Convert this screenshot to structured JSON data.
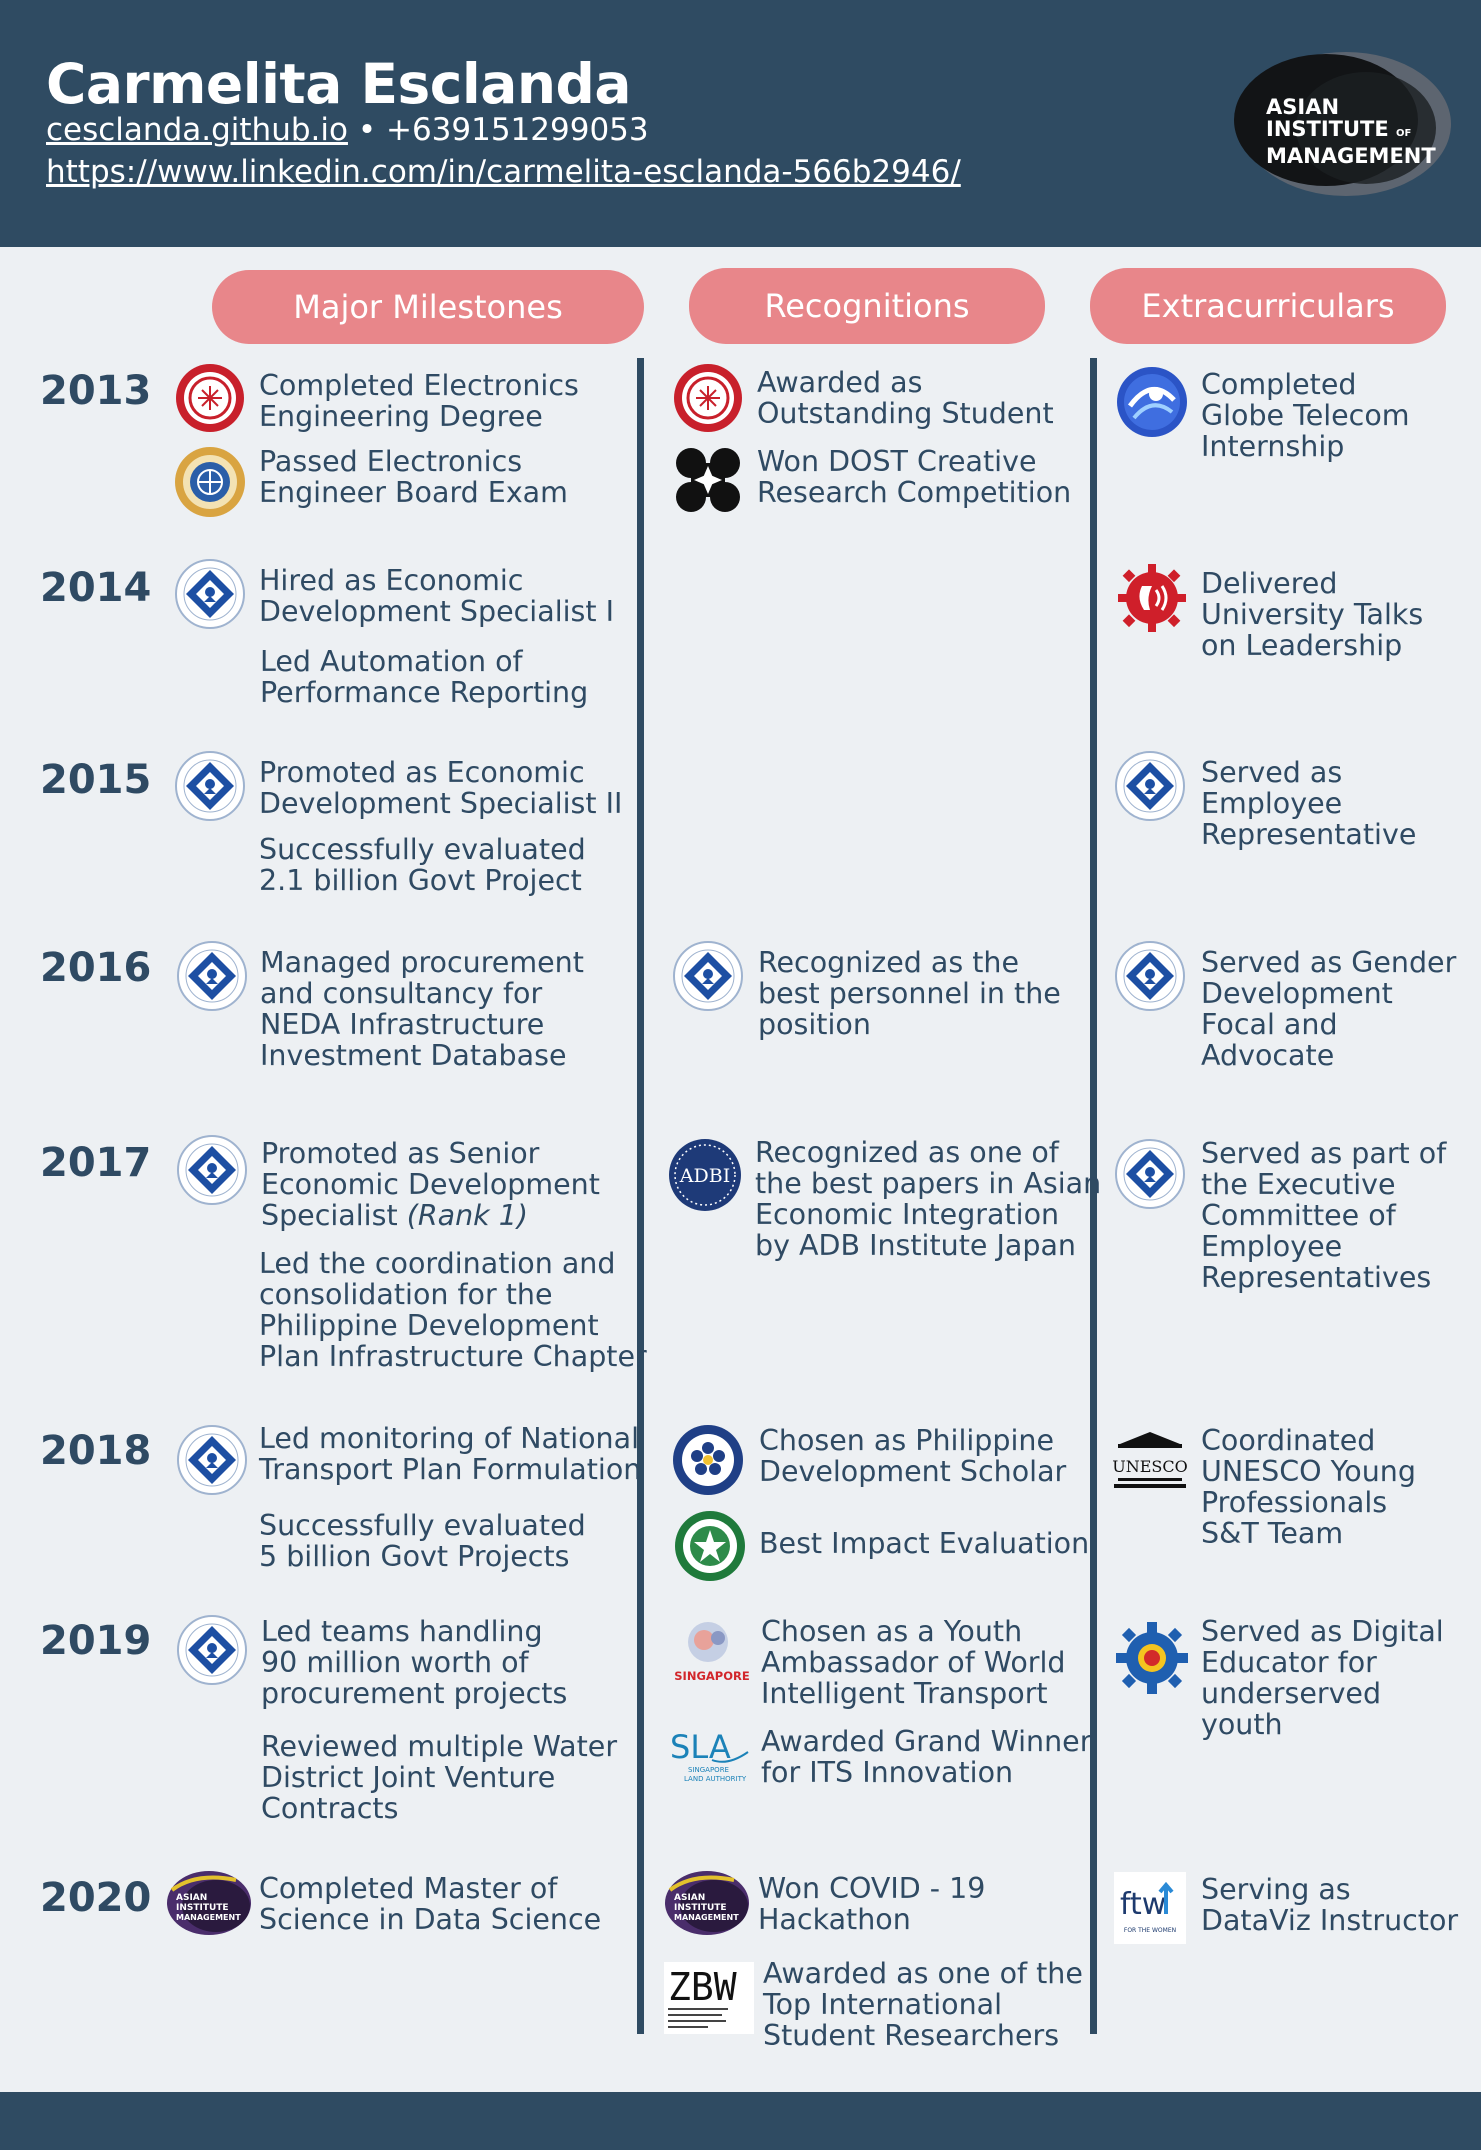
{
  "header": {
    "name": "Carmelita Esclanda",
    "website": "cesclanda.github.io",
    "separator": "•",
    "phone": "+639151299053",
    "linkedin": "https://www.linkedin.com/in/carmelita-esclanda-566b2946/",
    "logo": {
      "line1": "ASIAN",
      "line2": "INSTITUTE",
      "of": "OF",
      "line3": "MANAGEMENT"
    }
  },
  "columns": {
    "milestones": "Major Milestones",
    "recognitions": "Recognitions",
    "extracurriculars": "Extracurriculars"
  },
  "years": [
    "2013",
    "2014",
    "2015",
    "2016",
    "2017",
    "2018",
    "2019",
    "2020"
  ],
  "milestones": {
    "m2013a": [
      "Completed Electronics",
      "Engineering Degree"
    ],
    "m2013b": [
      "Passed Electronics",
      "Engineer Board Exam"
    ],
    "m2014a": [
      "Hired as Economic",
      "Development Specialist I"
    ],
    "m2014b": [
      "Led Automation of",
      "Performance Reporting"
    ],
    "m2015a": [
      "Promoted as Economic",
      "Development Specialist II"
    ],
    "m2015b": [
      "Successfully evaluated",
      "2.1 billion Govt Project"
    ],
    "m2016a": [
      "Managed procurement",
      "and consultancy for",
      "NEDA Infrastructure",
      "Investment Database"
    ],
    "m2017a": [
      "Promoted as Senior",
      "Economic Development",
      "Specialist",
      "(Rank 1)"
    ],
    "m2017b": [
      "Led the coordination and",
      "consolidation for the",
      "Philippine Development",
      "Plan Infrastructure Chapter"
    ],
    "m2018a": [
      "Led monitoring of National",
      "Transport Plan Formulation"
    ],
    "m2018b": [
      "Successfully evaluated",
      "5 billion Govt Projects"
    ],
    "m2019a": [
      "Led teams handling",
      "90 million worth of",
      "procurement projects"
    ],
    "m2019b": [
      "Reviewed multiple Water",
      "District Joint Venture",
      "Contracts"
    ],
    "m2020a": [
      "Completed Master of",
      "Science in Data Science"
    ]
  },
  "recognitions": {
    "r2013a": [
      "Awarded as",
      "Outstanding Student"
    ],
    "r2013b": [
      "Won DOST Creative",
      "Research Competition"
    ],
    "r2016a": [
      "Recognized as the",
      "best personnel in the",
      "position"
    ],
    "r2017a": [
      "Recognized as one of",
      "the best papers in Asian",
      "Economic Integration",
      "by ADB Institute Japan"
    ],
    "r2018a": [
      "Chosen as Philippine",
      "Development Scholar"
    ],
    "r2018b": [
      "Best Impact Evaluation"
    ],
    "r2019a": [
      "Chosen as a Youth",
      "Ambassador of World",
      "Intelligent Transport"
    ],
    "r2019b": [
      "Awarded Grand Winner",
      "for ITS Innovation"
    ],
    "r2020a": [
      "Won COVID - 19",
      "Hackathon"
    ],
    "r2020b": [
      "Awarded as one of the",
      "Top International",
      "Student Researchers"
    ]
  },
  "extracurriculars": {
    "e2013": [
      "Completed",
      "Globe Telecom",
      "Internship"
    ],
    "e2014": [
      "Delivered",
      "University Talks",
      "on Leadership"
    ],
    "e2015": [
      "Served as",
      "Employee",
      "Representative"
    ],
    "e2016": [
      "Served as Gender",
      "Development",
      "Focal and",
      "Advocate"
    ],
    "e2017": [
      "Served as part of",
      "the Executive",
      "Committee of",
      "Employee",
      "Representatives"
    ],
    "e2018": [
      "Coordinated",
      "UNESCO Young",
      "Professionals",
      "S&T Team"
    ],
    "e2019": [
      "Served as Digital",
      "Educator for",
      "underserved",
      "youth"
    ],
    "e2020": [
      "Serving as",
      "DataViz Instructor"
    ]
  },
  "logo_text": {
    "adb": "ADBI",
    "unesco": "UNESCO",
    "singapore": "SINGAPORE",
    "sla": "SLA",
    "sla_sub1": "SINGAPORE",
    "sla_sub2": "LAND AUTHORITY",
    "zbw": "ZBW",
    "ftw": "ftw",
    "ftw_sub": "FOR THE WOMEN",
    "aim_small": [
      "ASIAN",
      "INSTITUTE",
      "MANAGEMENT"
    ]
  },
  "colors": {
    "navy": "#2f4b62",
    "pill": "#e8868a",
    "background": "#edf0f3",
    "text": "#2f4a63"
  }
}
